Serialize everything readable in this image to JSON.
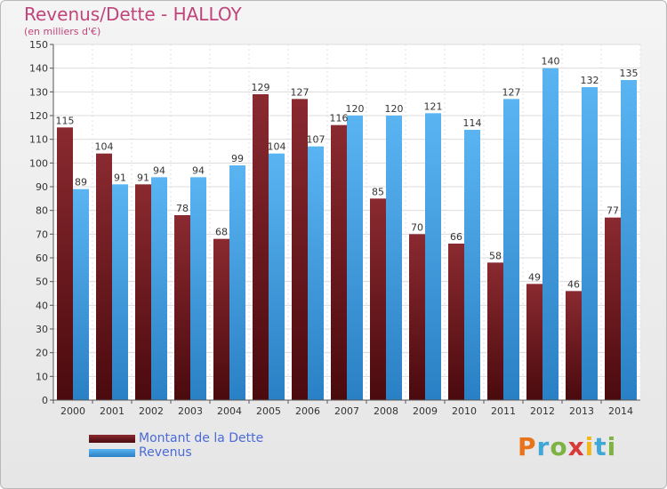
{
  "header": {
    "title": "Revenus/Dette - HALLOY",
    "subtitle": "(en milliers d'€)"
  },
  "chart_data": {
    "type": "bar",
    "title": "Revenus/Dette - HALLOY",
    "ylabel": "(en milliers d'€)",
    "xlabel": "",
    "categories": [
      "2000",
      "2001",
      "2002",
      "2003",
      "2004",
      "2005",
      "2006",
      "2007",
      "2008",
      "2009",
      "2010",
      "2011",
      "2012",
      "2013",
      "2014"
    ],
    "series": [
      {
        "name": "Montant de la Dette",
        "color": "#7a1f24",
        "values": [
          115,
          104,
          91,
          78,
          68,
          129,
          127,
          116,
          85,
          70,
          66,
          58,
          49,
          46,
          77
        ]
      },
      {
        "name": "Revenus",
        "color": "#3d9be0",
        "values": [
          89,
          91,
          94,
          94,
          99,
          104,
          107,
          120,
          120,
          121,
          114,
          127,
          140,
          132,
          135
        ]
      }
    ],
    "ylim": [
      0,
      150
    ],
    "yticks": [
      0,
      10,
      20,
      30,
      40,
      50,
      60,
      70,
      80,
      90,
      100,
      110,
      120,
      130,
      140,
      150
    ],
    "grid": true,
    "legend": "bottom-left"
  },
  "legend": {
    "items": [
      {
        "label": "Montant de la Dette",
        "color": "#7a1f24"
      },
      {
        "label": "Revenus",
        "color": "#3d9be0"
      }
    ]
  },
  "logo": {
    "text": "Proxiti",
    "colors": [
      "#e8731a",
      "#3fa8d8",
      "#7cb342",
      "#d83a3a",
      "#f2b71c",
      "#3fa8d8",
      "#7cb342"
    ]
  }
}
